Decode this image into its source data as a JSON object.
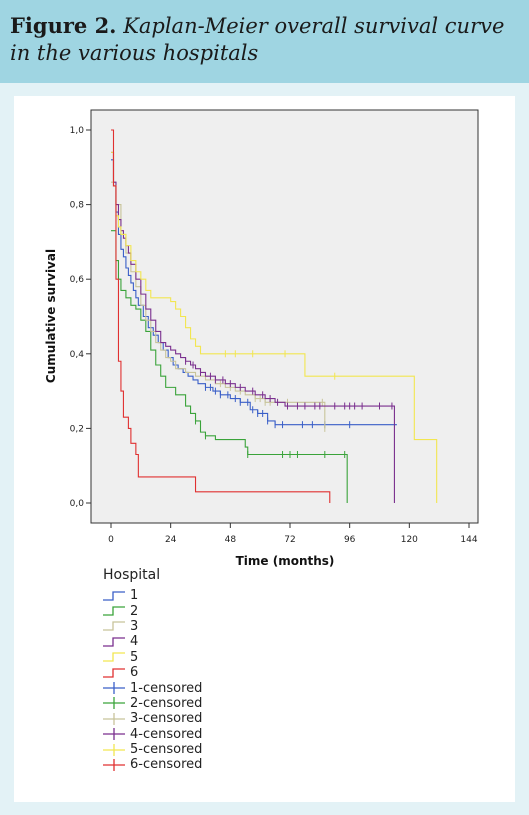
{
  "header": {
    "label": "Figure 2.",
    "caption": "Kaplan-Meier overall survival curve in the various hospitals"
  },
  "chart_data": {
    "type": "line",
    "xlabel": "Time (months)",
    "ylabel": "Cumulative survival",
    "xlim": [
      0,
      144
    ],
    "ylim": [
      0,
      1
    ],
    "xticks": [
      0,
      24,
      48,
      72,
      96,
      120,
      144
    ],
    "yticks": [
      "0,0",
      "0,2",
      "0,4",
      "0,6",
      "0,8",
      "1,0"
    ],
    "grid": false,
    "legend_title": "Hospital",
    "legend": [
      "1",
      "2",
      "3",
      "4",
      "5",
      "6",
      "1-censored",
      "2-censored",
      "3-censored",
      "4-censored",
      "5-censored",
      "6-censored"
    ],
    "colors": {
      "1": "#3a5fc8",
      "2": "#3aa33a",
      "3": "#c8c49a",
      "4": "#7a2f8e",
      "5": "#f2e650",
      "6": "#e03030"
    },
    "series": [
      {
        "name": "1",
        "color": "#3a5fc8",
        "points": [
          [
            0,
            0.92
          ],
          [
            1,
            0.85
          ],
          [
            2,
            0.78
          ],
          [
            3,
            0.72
          ],
          [
            4,
            0.68
          ],
          [
            5,
            0.66
          ],
          [
            6,
            0.63
          ],
          [
            7,
            0.61
          ],
          [
            8,
            0.59
          ],
          [
            9,
            0.57
          ],
          [
            10,
            0.55
          ],
          [
            11,
            0.53
          ],
          [
            13,
            0.5
          ],
          [
            15,
            0.47
          ],
          [
            17,
            0.45
          ],
          [
            19,
            0.43
          ],
          [
            21,
            0.41
          ],
          [
            23,
            0.39
          ],
          [
            25,
            0.37
          ],
          [
            27,
            0.36
          ],
          [
            29,
            0.35
          ],
          [
            31,
            0.34
          ],
          [
            33,
            0.33
          ],
          [
            35,
            0.32
          ],
          [
            38,
            0.31
          ],
          [
            41,
            0.3
          ],
          [
            44,
            0.29
          ],
          [
            48,
            0.28
          ],
          [
            52,
            0.27
          ],
          [
            56,
            0.25
          ],
          [
            59,
            0.24
          ],
          [
            63,
            0.22
          ],
          [
            66,
            0.21
          ],
          [
            115,
            0.21
          ]
        ],
        "censored_x": [
          38,
          40,
          42,
          44,
          47,
          50,
          52,
          55,
          57,
          59,
          61,
          63,
          66,
          69,
          77,
          81,
          86,
          96
        ]
      },
      {
        "name": "2",
        "color": "#3aa33a",
        "points": [
          [
            0,
            0.73
          ],
          [
            2,
            0.65
          ],
          [
            3,
            0.6
          ],
          [
            4,
            0.57
          ],
          [
            6,
            0.55
          ],
          [
            8,
            0.53
          ],
          [
            10,
            0.52
          ],
          [
            12,
            0.49
          ],
          [
            14,
            0.46
          ],
          [
            16,
            0.41
          ],
          [
            18,
            0.37
          ],
          [
            20,
            0.34
          ],
          [
            22,
            0.31
          ],
          [
            26,
            0.29
          ],
          [
            30,
            0.26
          ],
          [
            32,
            0.24
          ],
          [
            34,
            0.22
          ],
          [
            36,
            0.19
          ],
          [
            38,
            0.18
          ],
          [
            42,
            0.17
          ],
          [
            54,
            0.15
          ],
          [
            55,
            0.13
          ],
          [
            95,
            0.13
          ],
          [
            95,
            0.0
          ]
        ],
        "censored_x": [
          34,
          38,
          55,
          69,
          72,
          75,
          86,
          94
        ]
      },
      {
        "name": "3",
        "color": "#c8c49a",
        "points": [
          [
            0,
            0.86
          ],
          [
            2,
            0.8
          ],
          [
            4,
            0.72
          ],
          [
            6,
            0.67
          ],
          [
            8,
            0.62
          ],
          [
            10,
            0.58
          ],
          [
            12,
            0.53
          ],
          [
            14,
            0.49
          ],
          [
            16,
            0.46
          ],
          [
            18,
            0.43
          ],
          [
            20,
            0.41
          ],
          [
            22,
            0.39
          ],
          [
            24,
            0.38
          ],
          [
            26,
            0.36
          ],
          [
            30,
            0.35
          ],
          [
            34,
            0.34
          ],
          [
            38,
            0.33
          ],
          [
            42,
            0.32
          ],
          [
            46,
            0.31
          ],
          [
            50,
            0.3
          ],
          [
            54,
            0.29
          ],
          [
            58,
            0.28
          ],
          [
            62,
            0.27
          ],
          [
            86,
            0.27
          ],
          [
            86,
            0.2
          ]
        ],
        "censored_x": [
          44,
          48,
          52,
          58,
          60,
          62,
          64,
          71,
          85,
          86
        ]
      },
      {
        "name": "4",
        "color": "#7a2f8e",
        "points": [
          [
            0,
            0.94
          ],
          [
            1,
            0.86
          ],
          [
            2,
            0.8
          ],
          [
            3,
            0.76
          ],
          [
            4,
            0.73
          ],
          [
            5,
            0.71
          ],
          [
            6,
            0.69
          ],
          [
            7,
            0.67
          ],
          [
            8,
            0.64
          ],
          [
            10,
            0.6
          ],
          [
            12,
            0.56
          ],
          [
            14,
            0.52
          ],
          [
            16,
            0.49
          ],
          [
            18,
            0.46
          ],
          [
            20,
            0.43
          ],
          [
            22,
            0.42
          ],
          [
            24,
            0.41
          ],
          [
            26,
            0.4
          ],
          [
            28,
            0.39
          ],
          [
            30,
            0.38
          ],
          [
            32,
            0.37
          ],
          [
            34,
            0.36
          ],
          [
            36,
            0.35
          ],
          [
            38,
            0.34
          ],
          [
            42,
            0.33
          ],
          [
            46,
            0.32
          ],
          [
            50,
            0.31
          ],
          [
            54,
            0.3
          ],
          [
            58,
            0.29
          ],
          [
            62,
            0.28
          ],
          [
            66,
            0.27
          ],
          [
            70,
            0.26
          ],
          [
            114,
            0.26
          ],
          [
            114,
            0.0
          ]
        ],
        "censored_x": [
          30,
          33,
          36,
          40,
          42,
          45,
          48,
          52,
          57,
          61,
          64,
          67,
          71,
          75,
          78,
          82,
          84,
          90,
          94,
          96,
          98,
          101,
          108,
          113
        ]
      },
      {
        "name": "5",
        "color": "#f2e650",
        "points": [
          [
            0,
            0.94
          ],
          [
            1,
            0.85
          ],
          [
            2,
            0.77
          ],
          [
            3,
            0.74
          ],
          [
            4,
            0.72
          ],
          [
            6,
            0.69
          ],
          [
            8,
            0.65
          ],
          [
            10,
            0.62
          ],
          [
            12,
            0.6
          ],
          [
            14,
            0.57
          ],
          [
            16,
            0.55
          ],
          [
            24,
            0.54
          ],
          [
            26,
            0.52
          ],
          [
            28,
            0.5
          ],
          [
            30,
            0.47
          ],
          [
            32,
            0.44
          ],
          [
            34,
            0.42
          ],
          [
            36,
            0.4
          ],
          [
            76,
            0.4
          ],
          [
            78,
            0.34
          ],
          [
            121,
            0.34
          ],
          [
            122,
            0.17
          ],
          [
            131,
            0.17
          ],
          [
            131,
            0.0
          ]
        ],
        "censored_x": [
          46,
          50,
          57,
          70,
          90
        ]
      },
      {
        "name": "6",
        "color": "#e03030",
        "points": [
          [
            0,
            1.0
          ],
          [
            1,
            0.85
          ],
          [
            2,
            0.6
          ],
          [
            3,
            0.38
          ],
          [
            4,
            0.3
          ],
          [
            5,
            0.23
          ],
          [
            7,
            0.2
          ],
          [
            8,
            0.16
          ],
          [
            10,
            0.13
          ],
          [
            11,
            0.07
          ],
          [
            33,
            0.07
          ],
          [
            34,
            0.03
          ],
          [
            88,
            0.03
          ],
          [
            88,
            0.0
          ]
        ],
        "censored_x": []
      }
    ]
  }
}
